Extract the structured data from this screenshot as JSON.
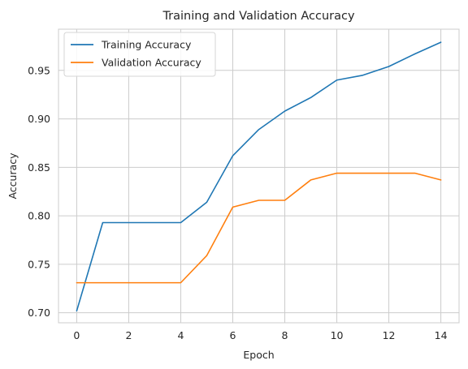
{
  "chart_data": {
    "type": "line",
    "title": "Training and Validation Accuracy",
    "xlabel": "Epoch",
    "ylabel": "Accuracy",
    "xlim": [
      -0.7,
      14.7
    ],
    "ylim": [
      0.6897,
      0.9925
    ],
    "xticks": [
      0,
      2,
      4,
      6,
      8,
      10,
      12,
      14
    ],
    "xtick_labels": [
      "0",
      "2",
      "4",
      "6",
      "8",
      "10",
      "12",
      "14"
    ],
    "yticks": [
      0.7,
      0.75,
      0.8,
      0.85,
      0.9,
      0.95
    ],
    "ytick_labels": [
      "0.70",
      "0.75",
      "0.80",
      "0.85",
      "0.90",
      "0.95"
    ],
    "grid": true,
    "legend_position": "top-left",
    "x": [
      0,
      1,
      2,
      3,
      4,
      5,
      6,
      7,
      8,
      9,
      10,
      11,
      12,
      13,
      14
    ],
    "series": [
      {
        "name": "Training Accuracy",
        "color": "#1f77b4",
        "values": [
          0.702,
          0.793,
          0.793,
          0.793,
          0.793,
          0.814,
          0.862,
          0.889,
          0.908,
          0.922,
          0.94,
          0.945,
          0.954,
          0.967,
          0.979
        ]
      },
      {
        "name": "Validation Accuracy",
        "color": "#ff7f0e",
        "values": [
          0.731,
          0.731,
          0.731,
          0.731,
          0.731,
          0.759,
          0.809,
          0.816,
          0.816,
          0.837,
          0.844,
          0.844,
          0.844,
          0.844,
          0.837
        ]
      }
    ]
  }
}
